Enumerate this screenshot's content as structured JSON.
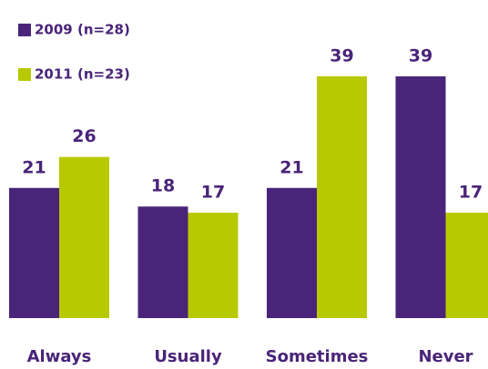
{
  "chart_data": {
    "type": "bar",
    "categories": [
      "Always",
      "Usually",
      "Sometimes",
      "Never"
    ],
    "series": [
      {
        "name": "2009 (n=28)",
        "color": "#4a2479",
        "values": [
          21,
          18,
          21,
          39
        ]
      },
      {
        "name": "2011 (n=23)",
        "color": "#b7c900",
        "values": [
          26,
          17,
          39,
          17
        ]
      }
    ],
    "legend": "top-left"
  }
}
